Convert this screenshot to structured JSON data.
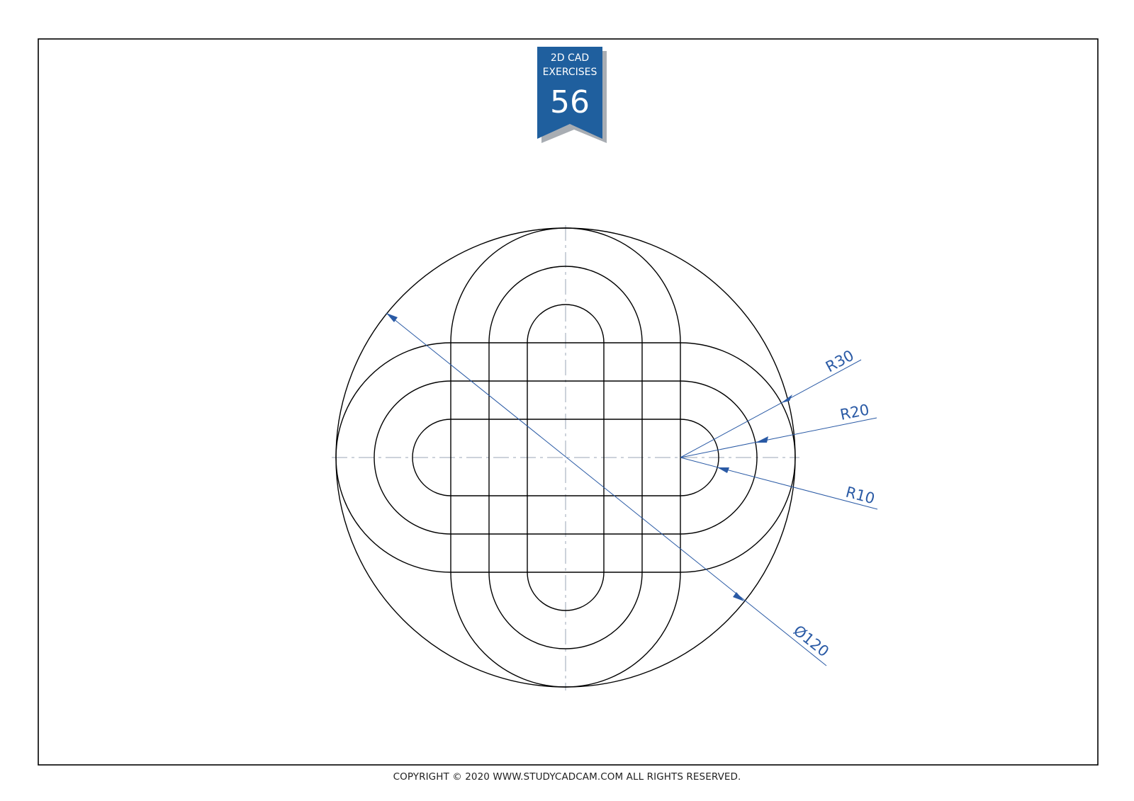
{
  "badge": {
    "line1": "2D CAD",
    "line2": "EXERCISES",
    "number": "56",
    "color": "#1f5f9e"
  },
  "dimensions": {
    "r30": "R30",
    "r20": "R20",
    "r10": "R10",
    "diameter": "Ø120"
  },
  "footer": {
    "copyright": "COPYRIGHT © 2020 WWW.STUDYCADCAM.COM ALL RIGHTS RESERVED."
  },
  "colors": {
    "dimension": "#2a5aa5",
    "geometry": "#000000",
    "centerline": "#9aa6b6"
  }
}
